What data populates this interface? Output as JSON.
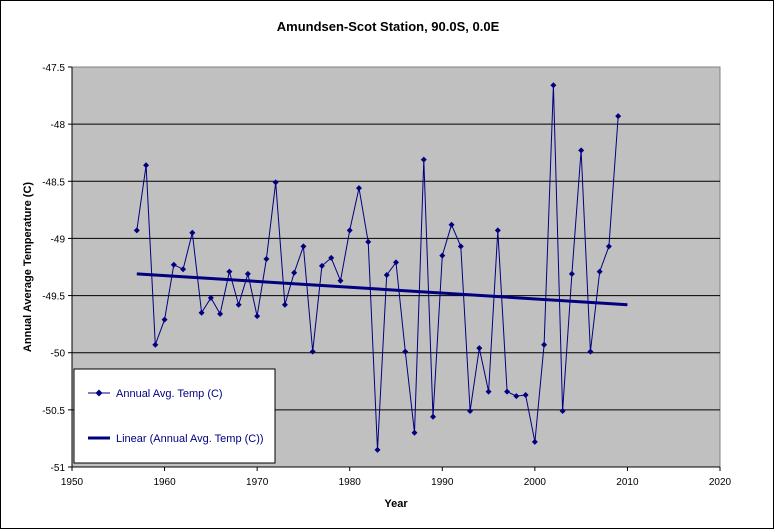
{
  "chart_data": {
    "type": "line",
    "title": "Amundsen-Scot Station, 90.0S, 0.0E",
    "xlabel": "Year",
    "ylabel": "Annual Average Temperature (C)",
    "xlim": [
      1950,
      2020
    ],
    "ylim": [
      -51,
      -47.5
    ],
    "x_ticks": [
      1950,
      1960,
      1970,
      1980,
      1990,
      2000,
      2010,
      2020
    ],
    "x_tick_labels": [
      "1950",
      "1960",
      "1970",
      "1980",
      "1990",
      "2000",
      "2010",
      "2020"
    ],
    "y_ticks": [
      -47.5,
      -48,
      -48.5,
      -49,
      -49.5,
      -50,
      -50.5,
      -51
    ],
    "y_tick_labels": [
      "-47.5",
      "-48",
      "-48.5",
      "-49",
      "-49.5",
      "-50",
      "-50.5",
      "-51"
    ],
    "grid": "horizontal",
    "legend_position": "bottom-left",
    "series": [
      {
        "name": "Annual Avg. Temp (C)",
        "color": "#000080",
        "marker": "diamond",
        "x": [
          1957,
          1958,
          1959,
          1960,
          1961,
          1962,
          1963,
          1964,
          1965,
          1966,
          1967,
          1968,
          1969,
          1970,
          1971,
          1972,
          1973,
          1974,
          1975,
          1976,
          1977,
          1978,
          1979,
          1980,
          1981,
          1982,
          1983,
          1984,
          1985,
          1986,
          1987,
          1988,
          1989,
          1990,
          1991,
          1992,
          1993,
          1994,
          1995,
          1996,
          1997,
          1998,
          1999,
          2000,
          2001,
          2002,
          2003,
          2004,
          2005,
          2006,
          2007,
          2008,
          2009
        ],
        "y": [
          -48.93,
          -48.36,
          -49.93,
          -49.71,
          -49.23,
          -49.27,
          -48.95,
          -49.65,
          -49.52,
          -49.66,
          -49.29,
          -49.58,
          -49.31,
          -49.68,
          -49.18,
          -48.51,
          -49.58,
          -49.3,
          -49.07,
          -49.99,
          -49.24,
          -49.17,
          -49.37,
          -48.93,
          -48.56,
          -49.03,
          -50.85,
          -49.32,
          -49.21,
          -49.99,
          -50.7,
          -48.31,
          -50.56,
          -49.15,
          -48.88,
          -49.07,
          -50.51,
          -49.96,
          -50.34,
          -48.93,
          -50.34,
          -50.38,
          -50.37,
          -50.78,
          -49.93,
          -47.66,
          -50.51,
          -49.31,
          -48.23,
          -49.99,
          -49.29,
          -49.07,
          -47.93
        ]
      },
      {
        "name": "Linear (Annual Avg. Temp (C))",
        "color": "#000080",
        "type": "trendline",
        "x": [
          1957,
          2010
        ],
        "y": [
          -49.31,
          -49.58
        ]
      }
    ]
  }
}
